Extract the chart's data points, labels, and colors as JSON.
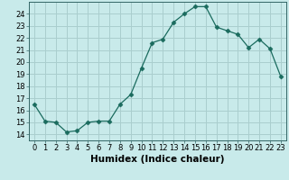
{
  "x": [
    0,
    1,
    2,
    3,
    4,
    5,
    6,
    7,
    8,
    9,
    10,
    11,
    12,
    13,
    14,
    15,
    16,
    17,
    18,
    19,
    20,
    21,
    22,
    23
  ],
  "y": [
    16.5,
    15.1,
    15.0,
    14.2,
    14.3,
    15.0,
    15.1,
    15.1,
    16.5,
    17.3,
    19.5,
    21.6,
    21.9,
    23.3,
    24.0,
    24.6,
    24.6,
    22.9,
    22.6,
    22.3,
    21.2,
    21.9,
    21.1,
    18.8
  ],
  "line_color": "#1a6b5e",
  "marker": "D",
  "marker_size": 2.5,
  "bg_color": "#c8eaea",
  "grid_color": "#aacece",
  "xlabel": "Humidex (Indice chaleur)",
  "xlim": [
    -0.5,
    23.5
  ],
  "ylim": [
    13.5,
    25.0
  ],
  "yticks": [
    14,
    15,
    16,
    17,
    18,
    19,
    20,
    21,
    22,
    23,
    24
  ],
  "xticks": [
    0,
    1,
    2,
    3,
    4,
    5,
    6,
    7,
    8,
    9,
    10,
    11,
    12,
    13,
    14,
    15,
    16,
    17,
    18,
    19,
    20,
    21,
    22,
    23
  ],
  "tick_fontsize": 6.0,
  "label_fontsize": 7.5
}
